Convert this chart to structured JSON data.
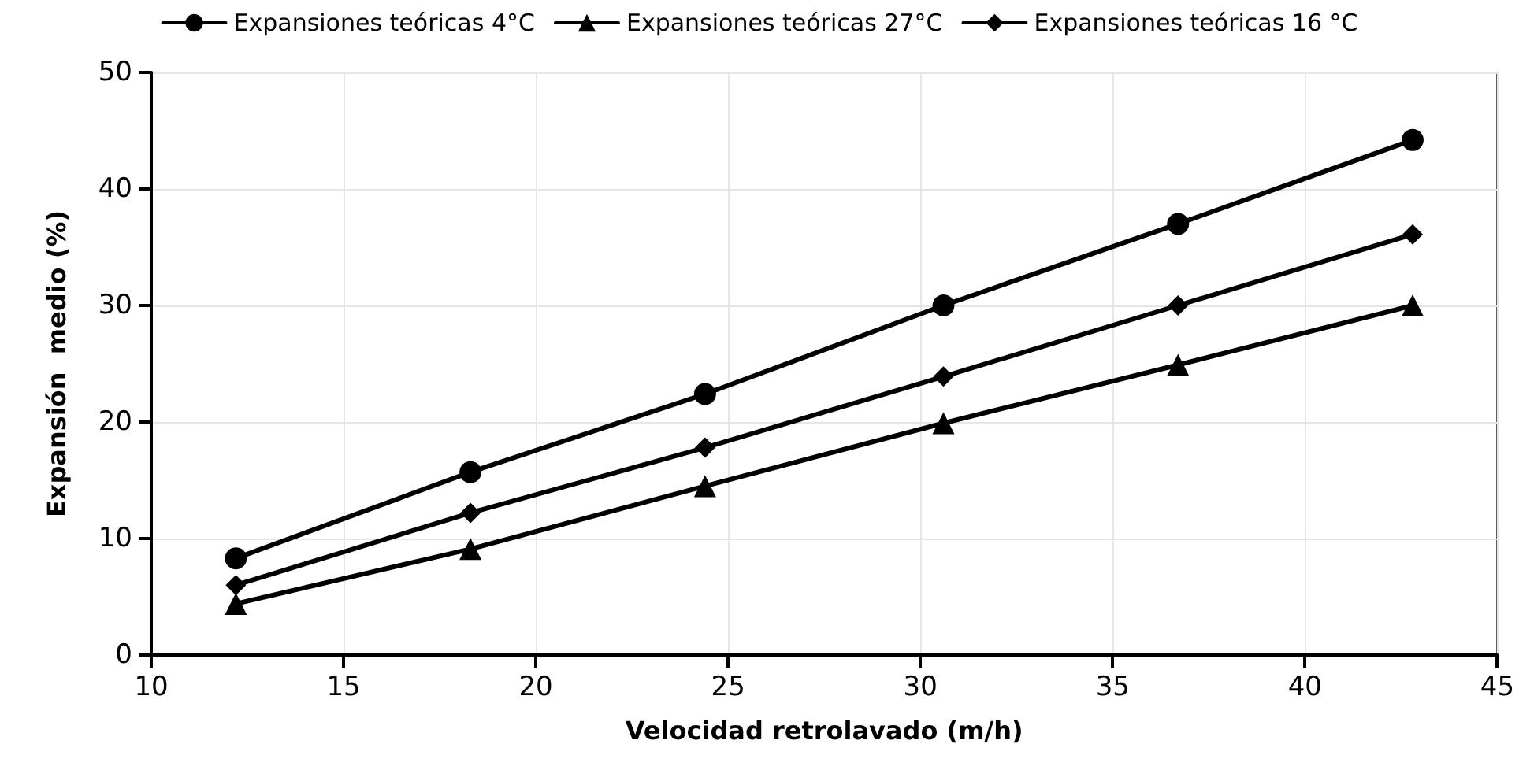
{
  "chart_data": {
    "type": "line",
    "xlabel": "Velocidad retrolavado (m/h)",
    "ylabel": "Expansión  medio (%)",
    "xlim": [
      10,
      45
    ],
    "xticks": [
      10,
      15,
      20,
      25,
      30,
      35,
      40,
      45
    ],
    "ylim": [
      0,
      50
    ],
    "yticks": [
      0,
      10,
      20,
      30,
      40,
      50
    ],
    "x": [
      12.2,
      18.3,
      24.4,
      30.6,
      36.7,
      42.8
    ],
    "series": [
      {
        "name": "Expansiones teóricas 4°C",
        "color": "#000000",
        "marker": "circle",
        "values": [
          8.3,
          15.7,
          22.4,
          30.0,
          37.0,
          44.2
        ]
      },
      {
        "name": "Expansiones teóricas 27°C",
        "color": "#000000",
        "marker": "triangle",
        "values": [
          4.4,
          9.1,
          14.5,
          19.9,
          24.9,
          30.0
        ]
      },
      {
        "name": "Expansiones teóricas 16 °C",
        "color": "#000000",
        "marker": "diamond",
        "values": [
          6.0,
          12.2,
          17.8,
          23.9,
          30.0,
          36.1
        ]
      }
    ],
    "grid": true,
    "legend": "top",
    "line_style": "solid"
  }
}
